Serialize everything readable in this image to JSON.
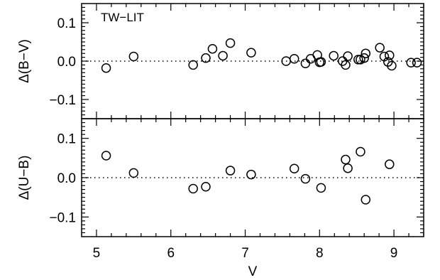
{
  "chart_data": [
    {
      "type": "scatter",
      "annotation": "TW−LIT",
      "ylabel": "Δ(B−V)",
      "xlabel": "",
      "xlim": [
        4.8,
        9.4
      ],
      "ylim": [
        -0.15,
        0.15
      ],
      "yticks": [
        0.1,
        0.0,
        -0.1
      ],
      "ytick_labels": [
        "0.1",
        "0.0",
        "−0.1"
      ],
      "reference_line": 0.0,
      "marker": "open-circle",
      "points": [
        {
          "x": 5.13,
          "y": -0.018
        },
        {
          "x": 5.5,
          "y": 0.012
        },
        {
          "x": 6.3,
          "y": -0.01
        },
        {
          "x": 6.47,
          "y": 0.008
        },
        {
          "x": 6.56,
          "y": 0.032
        },
        {
          "x": 6.7,
          "y": 0.014
        },
        {
          "x": 6.8,
          "y": 0.047
        },
        {
          "x": 7.08,
          "y": 0.022
        },
        {
          "x": 7.55,
          "y": 0.0
        },
        {
          "x": 7.66,
          "y": 0.006
        },
        {
          "x": 7.81,
          "y": -0.006
        },
        {
          "x": 7.88,
          "y": 0.006
        },
        {
          "x": 7.97,
          "y": 0.016
        },
        {
          "x": 8.0,
          "y": -0.003
        },
        {
          "x": 8.02,
          "y": -0.002
        },
        {
          "x": 8.19,
          "y": 0.014
        },
        {
          "x": 8.31,
          "y": 0.0
        },
        {
          "x": 8.35,
          "y": -0.01
        },
        {
          "x": 8.38,
          "y": 0.013
        },
        {
          "x": 8.52,
          "y": 0.004
        },
        {
          "x": 8.55,
          "y": 0.004
        },
        {
          "x": 8.6,
          "y": 0.008
        },
        {
          "x": 8.62,
          "y": 0.02
        },
        {
          "x": 8.81,
          "y": 0.035
        },
        {
          "x": 8.87,
          "y": 0.012
        },
        {
          "x": 8.92,
          "y": -0.002
        },
        {
          "x": 8.94,
          "y": 0.015
        },
        {
          "x": 8.97,
          "y": -0.012
        },
        {
          "x": 9.23,
          "y": -0.004
        },
        {
          "x": 9.31,
          "y": -0.004
        }
      ]
    },
    {
      "type": "scatter",
      "ylabel": "Δ(U−B)",
      "xlabel": "V",
      "xlim": [
        4.8,
        9.4
      ],
      "ylim": [
        -0.15,
        0.15
      ],
      "xticks": [
        5,
        6,
        7,
        8,
        9
      ],
      "xtick_labels": [
        "5",
        "6",
        "7",
        "8",
        "9"
      ],
      "yticks": [
        0.1,
        0.0,
        -0.1
      ],
      "ytick_labels": [
        "0.1",
        "0.0",
        "−0.1"
      ],
      "reference_line": 0.0,
      "marker": "open-circle",
      "points": [
        {
          "x": 5.13,
          "y": 0.056
        },
        {
          "x": 5.5,
          "y": 0.012
        },
        {
          "x": 6.3,
          "y": -0.028
        },
        {
          "x": 6.47,
          "y": -0.023
        },
        {
          "x": 6.8,
          "y": 0.018
        },
        {
          "x": 7.08,
          "y": 0.008
        },
        {
          "x": 7.66,
          "y": 0.023
        },
        {
          "x": 7.81,
          "y": -0.003
        },
        {
          "x": 8.02,
          "y": -0.026
        },
        {
          "x": 8.35,
          "y": 0.046
        },
        {
          "x": 8.38,
          "y": 0.024
        },
        {
          "x": 8.55,
          "y": 0.066
        },
        {
          "x": 8.62,
          "y": -0.056
        },
        {
          "x": 8.94,
          "y": 0.034
        }
      ]
    }
  ]
}
